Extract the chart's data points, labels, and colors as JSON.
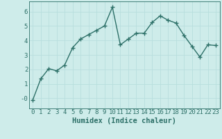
{
  "x": [
    0,
    1,
    2,
    3,
    4,
    5,
    6,
    7,
    8,
    9,
    10,
    11,
    12,
    13,
    14,
    15,
    16,
    17,
    18,
    19,
    20,
    21,
    22,
    23
  ],
  "y": [
    -0.1,
    1.35,
    2.05,
    1.9,
    2.3,
    3.5,
    4.1,
    4.4,
    4.7,
    5.0,
    6.3,
    3.7,
    4.1,
    4.5,
    4.5,
    5.25,
    5.7,
    5.4,
    5.2,
    4.35,
    3.6,
    2.85,
    3.7,
    3.65
  ],
  "xlabel": "Humidex (Indice chaleur)",
  "xlim": [
    -0.5,
    23.5
  ],
  "ylim": [
    -0.7,
    6.7
  ],
  "yticks": [
    0,
    1,
    2,
    3,
    4,
    5,
    6
  ],
  "ytick_labels": [
    "-0",
    "1",
    "2",
    "3",
    "4",
    "5",
    "6"
  ],
  "xtick_labels": [
    "0",
    "1",
    "2",
    "3",
    "4",
    "5",
    "6",
    "7",
    "8",
    "9",
    "10",
    "11",
    "12",
    "13",
    "14",
    "15",
    "16",
    "17",
    "18",
    "19",
    "20",
    "21",
    "22",
    "23"
  ],
  "bg_color": "#ceecea",
  "grid_color": "#b8dedd",
  "line_color": "#2d7068",
  "marker_color": "#2d7068",
  "line_width": 1.0,
  "marker_size": 4.0,
  "font_color": "#2d7068",
  "xlabel_fontsize": 7.5,
  "tick_fontsize": 6.5
}
